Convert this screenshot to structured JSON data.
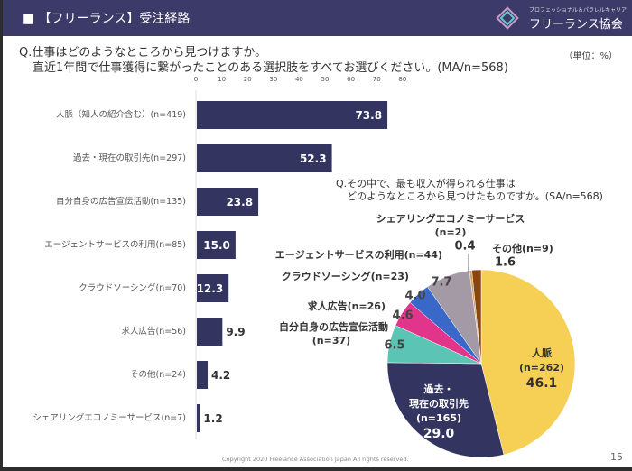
{
  "header": {
    "title": "■ 【フリーランス】受注経路",
    "logo_sub": "プロフェッショナル＆パラレルキャリア",
    "logo_name": "フリーランス協会"
  },
  "question1": {
    "line1": "Q.仕事はどのようなところから見つけますか。",
    "line2": "直近1年間で仕事獲得に繋がったことのある選択肢をすべてお選びください。(MA/n=568)"
  },
  "unit": "（単位：%）",
  "question2": {
    "line1": "Q.その中で、最も収入が得られる仕事は",
    "line2": "どのようなところから見つけたものですか。(SA/n=568)"
  },
  "footer": {
    "copyright": "Copyright 2020 Freelance Association Japan  All rights reserved.",
    "page": "15"
  },
  "chart_data": [
    {
      "type": "bar",
      "orientation": "horizontal",
      "xlim": [
        0,
        80
      ],
      "ticks": [
        "0",
        "10",
        "20",
        "30",
        "40",
        "50",
        "60",
        "70",
        "80"
      ],
      "categories": [
        "人脈（知人の紹介含む）(n=419)",
        "過去・現在の取引先(n=297)",
        "自分自身の広告宣伝活動(n=135)",
        "エージェントサービスの利用(n=85)",
        "クラウドソーシング(n=70)",
        "求人広告(n=56)",
        "その他(n=24)",
        "シェアリングエコノミーサービス(n=7)"
      ],
      "values": [
        73.8,
        52.3,
        23.8,
        15.0,
        12.3,
        9.9,
        4.2,
        1.2
      ],
      "labels": [
        "73.8",
        "52.3",
        "23.8",
        "15.0",
        "12.3",
        "9.9",
        "4.2",
        "1.2"
      ],
      "color": "#33345f"
    },
    {
      "type": "pie",
      "slices": [
        {
          "name": "人脈",
          "n": "(n=262)",
          "value": 46.1,
          "label": "46.1",
          "color": "#f6cf55"
        },
        {
          "name": "過去・現在の取引先",
          "n": "(n=165)",
          "value": 29.0,
          "label": "29.0",
          "color": "#33345f"
        },
        {
          "name": "自分自身の広告宣伝活動",
          "n": "(n=37)",
          "value": 6.5,
          "label": "6.5",
          "color": "#5cc4b4"
        },
        {
          "name": "求人広告",
          "n": "(n=26)",
          "value": 4.6,
          "label": "4.6",
          "color": "#e0358a"
        },
        {
          "name": "クラウドソーシング",
          "n": "(n=23)",
          "value": 4.0,
          "label": "4.0",
          "color": "#3a68c8"
        },
        {
          "name": "エージェントサービスの利用",
          "n": "(n=44)",
          "value": 7.7,
          "label": "7.7",
          "color": "#a39aa6"
        },
        {
          "name": "シェアリングエコノミーサービス",
          "n": "(n=2)",
          "value": 0.4,
          "label": "0.4",
          "color": "#c9a36a"
        },
        {
          "name": "その他",
          "n": "(n=9)",
          "value": 1.6,
          "label": "1.6",
          "color": "#8b4513"
        }
      ]
    }
  ]
}
